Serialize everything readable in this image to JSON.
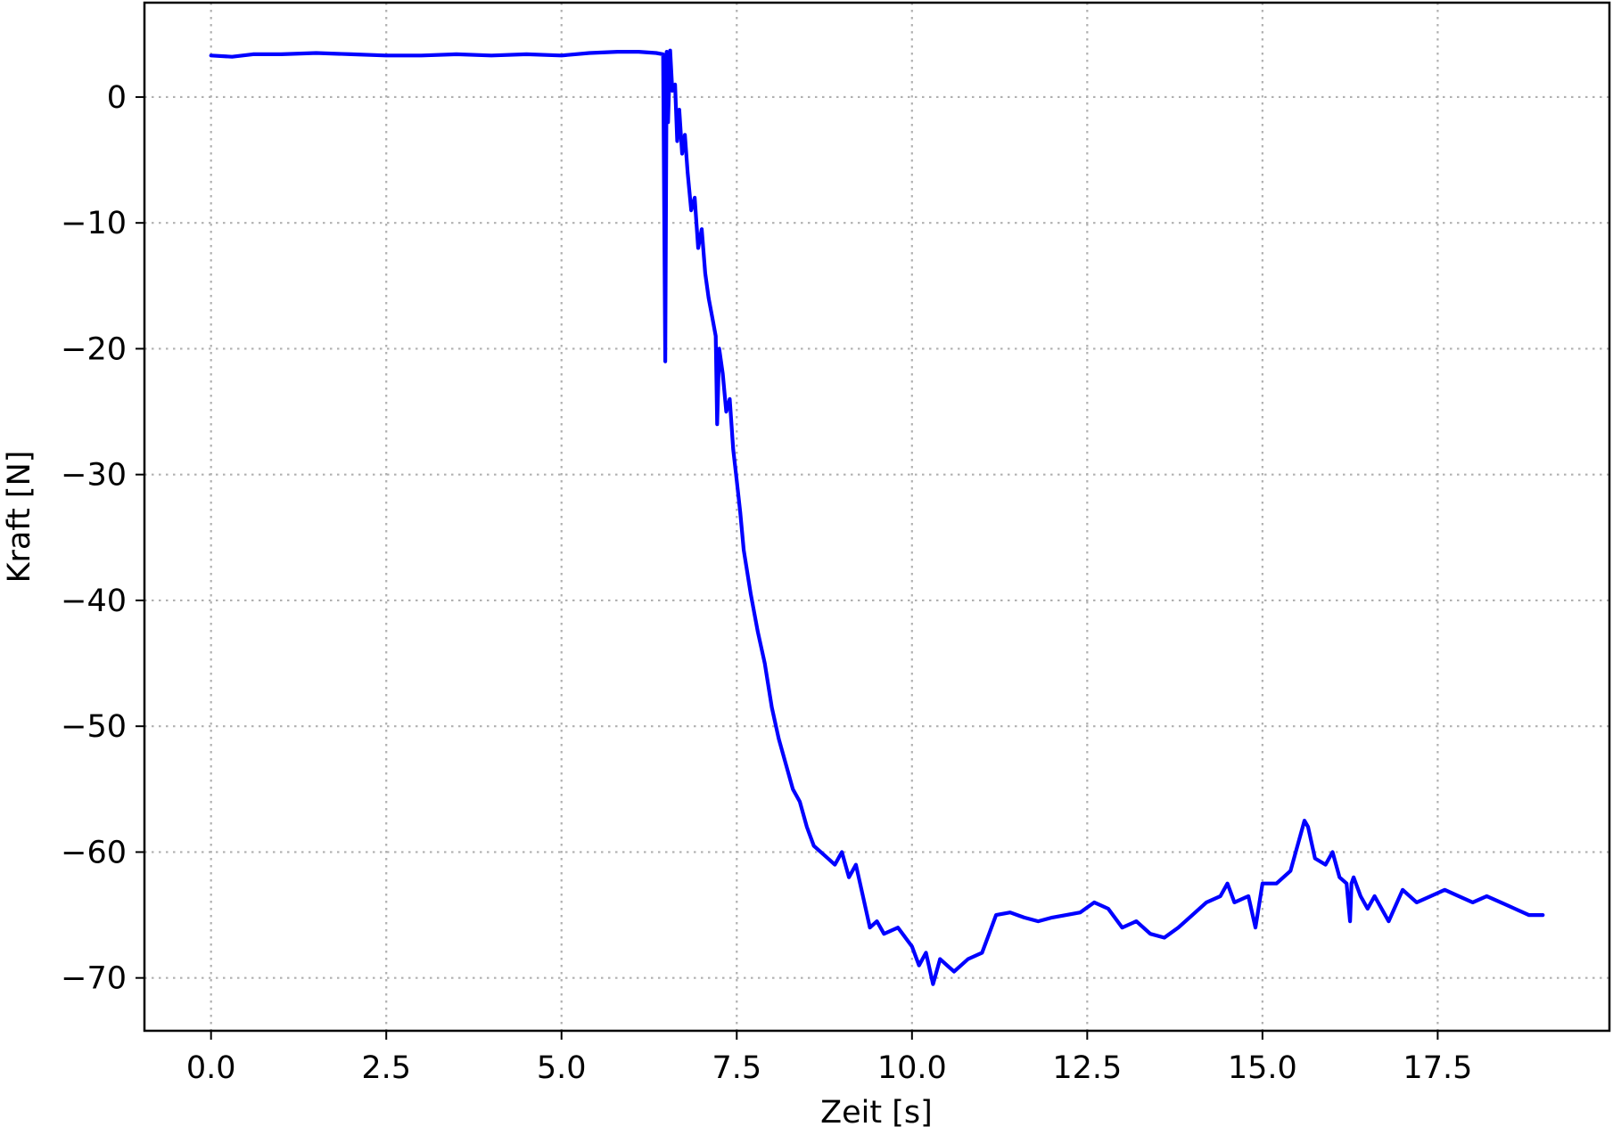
{
  "chart_data": {
    "type": "line",
    "title": "",
    "xlabel": "Zeit [s]",
    "ylabel": "Kraft [N]",
    "xlim": [
      -0.95,
      19.95
    ],
    "ylim": [
      -74.2,
      7.5
    ],
    "xticks": [
      0.0,
      2.5,
      5.0,
      7.5,
      10.0,
      12.5,
      15.0,
      17.5
    ],
    "xtick_labels": [
      "0.0",
      "2.5",
      "5.0",
      "7.5",
      "10.0",
      "12.5",
      "15.0",
      "17.5"
    ],
    "yticks": [
      0,
      -10,
      -20,
      -30,
      -40,
      -50,
      -60,
      -70
    ],
    "ytick_labels": [
      "0",
      "−10",
      "−20",
      "−30",
      "−40",
      "−50",
      "−60",
      "−70"
    ],
    "grid": true,
    "legend": "none",
    "series": [
      {
        "color": "#0000ff",
        "x": [
          0.0,
          0.3,
          0.6,
          1.0,
          1.5,
          2.0,
          2.5,
          3.0,
          3.5,
          4.0,
          4.5,
          5.0,
          5.4,
          5.8,
          6.1,
          6.35,
          6.45,
          6.48,
          6.5,
          6.52,
          6.55,
          6.58,
          6.62,
          6.65,
          6.68,
          6.72,
          6.76,
          6.8,
          6.85,
          6.9,
          6.95,
          7.0,
          7.05,
          7.1,
          7.15,
          7.2,
          7.22,
          7.25,
          7.3,
          7.35,
          7.4,
          7.45,
          7.5,
          7.55,
          7.6,
          7.7,
          7.8,
          7.9,
          8.0,
          8.1,
          8.2,
          8.3,
          8.4,
          8.5,
          8.6,
          8.7,
          8.8,
          8.9,
          9.0,
          9.1,
          9.2,
          9.3,
          9.4,
          9.5,
          9.6,
          9.8,
          10.0,
          10.1,
          10.2,
          10.3,
          10.4,
          10.5,
          10.6,
          10.8,
          11.0,
          11.1,
          11.2,
          11.4,
          11.6,
          11.8,
          12.0,
          12.2,
          12.4,
          12.6,
          12.8,
          13.0,
          13.2,
          13.4,
          13.6,
          13.8,
          14.0,
          14.2,
          14.4,
          14.5,
          14.6,
          14.8,
          14.9,
          15.0,
          15.2,
          15.4,
          15.6,
          15.65,
          15.75,
          15.9,
          16.0,
          16.1,
          16.2,
          16.25,
          16.27,
          16.3,
          16.4,
          16.5,
          16.6,
          16.8,
          17.0,
          17.2,
          17.4,
          17.6,
          17.8,
          18.0,
          18.2,
          18.4,
          18.6,
          18.8,
          19.0
        ],
        "y": [
          3.3,
          3.2,
          3.4,
          3.4,
          3.5,
          3.4,
          3.3,
          3.3,
          3.4,
          3.3,
          3.4,
          3.3,
          3.5,
          3.6,
          3.6,
          3.5,
          3.4,
          -21.0,
          3.6,
          -2.0,
          3.7,
          0.5,
          1.0,
          -3.5,
          -1.0,
          -4.5,
          -3.0,
          -6.0,
          -9.0,
          -8.0,
          -12.0,
          -10.5,
          -14.0,
          -16.0,
          -17.5,
          -19.0,
          -26.0,
          -20.0,
          -22.0,
          -25.0,
          -24.0,
          -28.0,
          -30.5,
          -33.0,
          -36.0,
          -39.5,
          -42.5,
          -45.0,
          -48.5,
          -51.0,
          -53.0,
          -55.0,
          -56.0,
          -58.0,
          -59.5,
          -60.0,
          -60.5,
          -61.0,
          -60.0,
          -62.0,
          -61.0,
          -63.5,
          -66.0,
          -65.5,
          -66.5,
          -66.0,
          -67.5,
          -69.0,
          -68.0,
          -70.5,
          -68.5,
          -69.0,
          -69.5,
          -68.5,
          -68.0,
          -66.5,
          -65.0,
          -64.8,
          -65.2,
          -65.5,
          -65.2,
          -65.0,
          -64.8,
          -64.0,
          -64.5,
          -66.0,
          -65.5,
          -66.5,
          -66.8,
          -66.0,
          -65.0,
          -64.0,
          -63.5,
          -62.5,
          -64.0,
          -63.5,
          -66.0,
          -62.5,
          -62.5,
          -61.5,
          -57.5,
          -58.0,
          -60.5,
          -61.0,
          -60.0,
          -62.0,
          -62.5,
          -65.5,
          -62.5,
          -62.0,
          -63.5,
          -64.5,
          -63.5,
          -65.5,
          -63.0,
          -64.0,
          -63.5,
          -63.0,
          -63.5,
          -64.0,
          -63.5,
          -64.0,
          -64.5,
          -65.0,
          -65.0
        ]
      }
    ]
  }
}
